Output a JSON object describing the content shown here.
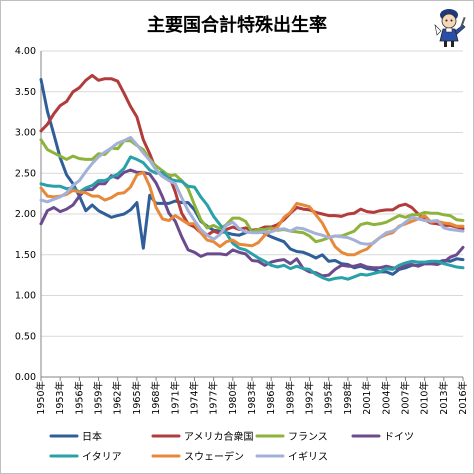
{
  "chart_data": {
    "type": "line",
    "title": "主要国合計特殊出生率",
    "xlabel": "",
    "ylabel": "",
    "ylim": [
      0,
      4
    ],
    "yticks": [
      "0.00",
      "0.50",
      "1.00",
      "1.50",
      "2.00",
      "2.50",
      "3.00",
      "3.50",
      "4.00"
    ],
    "x_start": 1950,
    "x_end": 2016,
    "xtick_labels": [
      "1950年",
      "1953年",
      "1956年",
      "1959年",
      "1962年",
      "1965年",
      "1968年",
      "1971年",
      "1974年",
      "1977年",
      "1980年",
      "1983年",
      "1986年",
      "1989年",
      "1992年",
      "1995年",
      "1998年",
      "2001年",
      "2004年",
      "2007年",
      "2010年",
      "2013年",
      "2016年"
    ],
    "grid": true,
    "legend_position": "bottom",
    "series": [
      {
        "name": "日本",
        "color": "#2f5e99",
        "values": [
          3.65,
          3.26,
          2.98,
          2.69,
          2.48,
          2.37,
          2.22,
          2.04,
          2.11,
          2.04,
          2.0,
          1.96,
          1.98,
          2.0,
          2.05,
          2.14,
          1.58,
          2.23,
          2.13,
          2.13,
          2.13,
          2.16,
          2.14,
          2.14,
          2.05,
          1.91,
          1.85,
          1.8,
          1.79,
          1.77,
          1.75,
          1.74,
          1.77,
          1.8,
          1.81,
          1.76,
          1.72,
          1.69,
          1.66,
          1.57,
          1.54,
          1.53,
          1.5,
          1.46,
          1.5,
          1.42,
          1.43,
          1.39,
          1.38,
          1.34,
          1.36,
          1.33,
          1.32,
          1.29,
          1.29,
          1.26,
          1.32,
          1.34,
          1.37,
          1.37,
          1.39,
          1.39,
          1.41,
          1.43,
          1.42,
          1.45,
          1.44
        ]
      },
      {
        "name": "アメリカ合衆国",
        "color": "#b23b3b",
        "values": [
          3.02,
          3.1,
          3.23,
          3.33,
          3.38,
          3.5,
          3.55,
          3.64,
          3.7,
          3.64,
          3.66,
          3.66,
          3.63,
          3.48,
          3.32,
          3.19,
          2.91,
          2.74,
          2.54,
          2.46,
          2.48,
          2.27,
          2.01,
          1.88,
          1.84,
          1.77,
          1.74,
          1.79,
          1.76,
          1.81,
          1.84,
          1.81,
          1.83,
          1.8,
          1.81,
          1.84,
          1.84,
          1.87,
          1.93,
          2.01,
          2.08,
          2.06,
          2.05,
          2.02,
          2.0,
          1.98,
          1.98,
          1.97,
          2.0,
          2.01,
          2.06,
          2.03,
          2.02,
          2.04,
          2.05,
          2.05,
          2.1,
          2.12,
          2.08,
          2.0,
          1.93,
          1.89,
          1.88,
          1.86,
          1.86,
          1.84,
          1.82
        ]
      },
      {
        "name": "フランス",
        "color": "#8db33b",
        "values": [
          2.91,
          2.79,
          2.75,
          2.71,
          2.67,
          2.71,
          2.68,
          2.67,
          2.67,
          2.74,
          2.73,
          2.81,
          2.8,
          2.9,
          2.9,
          2.84,
          2.79,
          2.67,
          2.59,
          2.53,
          2.47,
          2.48,
          2.41,
          2.31,
          2.11,
          1.93,
          1.83,
          1.86,
          1.82,
          1.87,
          1.95,
          1.95,
          1.91,
          1.78,
          1.81,
          1.81,
          1.83,
          1.8,
          1.81,
          1.79,
          1.78,
          1.77,
          1.73,
          1.66,
          1.68,
          1.71,
          1.73,
          1.73,
          1.76,
          1.79,
          1.87,
          1.89,
          1.87,
          1.88,
          1.9,
          1.94,
          1.98,
          1.96,
          1.99,
          1.99,
          2.02,
          2.01,
          2.01,
          1.99,
          1.98,
          1.93,
          1.92
        ]
      },
      {
        "name": "ドイツ",
        "color": "#6b4b8e",
        "values": [
          1.88,
          2.04,
          2.08,
          2.03,
          2.06,
          2.11,
          2.22,
          2.3,
          2.3,
          2.37,
          2.37,
          2.47,
          2.44,
          2.51,
          2.54,
          2.51,
          2.51,
          2.49,
          2.38,
          2.21,
          2.01,
          1.91,
          1.72,
          1.56,
          1.53,
          1.48,
          1.51,
          1.51,
          1.51,
          1.5,
          1.56,
          1.53,
          1.51,
          1.43,
          1.42,
          1.37,
          1.41,
          1.43,
          1.44,
          1.39,
          1.45,
          1.33,
          1.29,
          1.28,
          1.24,
          1.25,
          1.32,
          1.37,
          1.36,
          1.36,
          1.38,
          1.35,
          1.34,
          1.34,
          1.36,
          1.34,
          1.33,
          1.37,
          1.38,
          1.36,
          1.39,
          1.39,
          1.38,
          1.41,
          1.47,
          1.5,
          1.59
        ]
      },
      {
        "name": "イタリア",
        "color": "#2aa0a8",
        "values": [
          2.37,
          2.35,
          2.34,
          2.34,
          2.31,
          2.32,
          2.27,
          2.32,
          2.35,
          2.41,
          2.41,
          2.45,
          2.49,
          2.56,
          2.7,
          2.67,
          2.63,
          2.54,
          2.5,
          2.51,
          2.43,
          2.41,
          2.4,
          2.34,
          2.33,
          2.21,
          2.11,
          1.97,
          1.87,
          1.76,
          1.64,
          1.58,
          1.56,
          1.51,
          1.46,
          1.42,
          1.37,
          1.35,
          1.37,
          1.33,
          1.36,
          1.33,
          1.32,
          1.26,
          1.22,
          1.19,
          1.21,
          1.22,
          1.2,
          1.23,
          1.26,
          1.25,
          1.27,
          1.29,
          1.33,
          1.32,
          1.37,
          1.4,
          1.42,
          1.41,
          1.41,
          1.42,
          1.42,
          1.39,
          1.37,
          1.35,
          1.34
        ]
      },
      {
        "name": "スウェーデン",
        "color": "#e8893a",
        "values": [
          2.32,
          2.22,
          2.21,
          2.22,
          2.24,
          2.29,
          2.27,
          2.26,
          2.22,
          2.22,
          2.17,
          2.2,
          2.25,
          2.26,
          2.33,
          2.48,
          2.51,
          2.34,
          2.08,
          1.94,
          1.92,
          1.98,
          1.93,
          1.88,
          1.88,
          1.77,
          1.68,
          1.66,
          1.6,
          1.66,
          1.68,
          1.63,
          1.62,
          1.61,
          1.65,
          1.74,
          1.79,
          1.84,
          1.96,
          2.02,
          2.13,
          2.11,
          2.09,
          1.99,
          1.89,
          1.74,
          1.6,
          1.53,
          1.5,
          1.5,
          1.54,
          1.57,
          1.65,
          1.71,
          1.75,
          1.77,
          1.85,
          1.88,
          1.91,
          1.94,
          1.98,
          1.9,
          1.91,
          1.89,
          1.88,
          1.85,
          1.85
        ]
      },
      {
        "name": "イギリス",
        "color": "#a3b1d8",
        "values": [
          2.17,
          2.15,
          2.18,
          2.21,
          2.26,
          2.35,
          2.41,
          2.52,
          2.62,
          2.7,
          2.76,
          2.81,
          2.87,
          2.9,
          2.94,
          2.85,
          2.75,
          2.66,
          2.54,
          2.46,
          2.41,
          2.37,
          2.2,
          2.04,
          1.92,
          1.81,
          1.74,
          1.69,
          1.75,
          1.86,
          1.9,
          1.82,
          1.78,
          1.77,
          1.77,
          1.78,
          1.78,
          1.81,
          1.82,
          1.79,
          1.83,
          1.82,
          1.79,
          1.76,
          1.74,
          1.71,
          1.73,
          1.72,
          1.71,
          1.68,
          1.64,
          1.63,
          1.64,
          1.71,
          1.77,
          1.79,
          1.84,
          1.9,
          1.96,
          1.94,
          1.92,
          1.91,
          1.92,
          1.83,
          1.81,
          1.8,
          1.79
        ]
      }
    ]
  }
}
